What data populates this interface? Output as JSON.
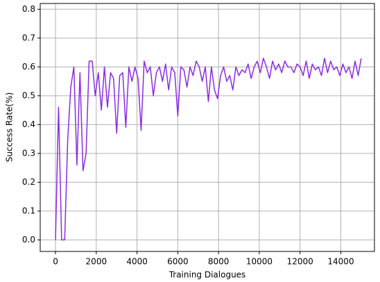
{
  "chart_data": {
    "type": "line",
    "xlabel": "Training Dialogues",
    "ylabel": "Success Rate(%)",
    "x": [
      0,
      150,
      300,
      450,
      600,
      750,
      900,
      1050,
      1200,
      1350,
      1500,
      1650,
      1800,
      1950,
      2100,
      2250,
      2400,
      2550,
      2700,
      2850,
      3000,
      3150,
      3300,
      3450,
      3600,
      3750,
      3900,
      4050,
      4200,
      4350,
      4500,
      4650,
      4800,
      4950,
      5100,
      5250,
      5400,
      5550,
      5700,
      5850,
      6000,
      6150,
      6300,
      6450,
      6600,
      6750,
      6900,
      7050,
      7200,
      7350,
      7500,
      7650,
      7800,
      7950,
      8100,
      8250,
      8400,
      8550,
      8700,
      8850,
      9000,
      9150,
      9300,
      9450,
      9600,
      9750,
      9900,
      10050,
      10200,
      10350,
      10500,
      10650,
      10800,
      10950,
      11100,
      11250,
      11400,
      11550,
      11700,
      11850,
      12000,
      12150,
      12300,
      12450,
      12600,
      12750,
      12900,
      13050,
      13200,
      13350,
      13500,
      13650,
      13800,
      13950,
      14100,
      14250,
      14400,
      14550,
      14700,
      14850,
      15000
    ],
    "series": [
      {
        "color": "#8a2be2",
        "values": [
          0,
          0.46,
          0,
          0,
          0.35,
          0.53,
          0.6,
          0.26,
          0.58,
          0.24,
          0.3,
          0.62,
          0.62,
          0.5,
          0.58,
          0.45,
          0.6,
          0.46,
          0.58,
          0.56,
          0.37,
          0.57,
          0.58,
          0.39,
          0.6,
          0.55,
          0.6,
          0.56,
          0.38,
          0.62,
          0.58,
          0.6,
          0.5,
          0.58,
          0.6,
          0.55,
          0.61,
          0.52,
          0.6,
          0.58,
          0.43,
          0.6,
          0.59,
          0.53,
          0.6,
          0.57,
          0.62,
          0.6,
          0.55,
          0.6,
          0.48,
          0.6,
          0.52,
          0.49,
          0.57,
          0.6,
          0.55,
          0.57,
          0.52,
          0.6,
          0.57,
          0.59,
          0.58,
          0.61,
          0.56,
          0.6,
          0.62,
          0.58,
          0.63,
          0.6,
          0.56,
          0.62,
          0.59,
          0.61,
          0.58,
          0.62,
          0.6,
          0.6,
          0.58,
          0.61,
          0.6,
          0.57,
          0.62,
          0.56,
          0.61,
          0.59,
          0.6,
          0.57,
          0.63,
          0.58,
          0.62,
          0.59,
          0.6,
          0.57,
          0.61,
          0.58,
          0.6,
          0.56,
          0.62,
          0.57,
          0.63
        ]
      }
    ],
    "xlim": [
      -750,
      15650
    ],
    "ylim": [
      -0.04,
      0.82
    ],
    "xticks": [
      0,
      2000,
      4000,
      6000,
      8000,
      10000,
      12000,
      14000
    ],
    "yticks": [
      {
        "value": 0,
        "label": "0.0"
      },
      0.1,
      0.2,
      0.3,
      0.4,
      0.5,
      0.6,
      0.7,
      0.8
    ],
    "grid": true
  }
}
